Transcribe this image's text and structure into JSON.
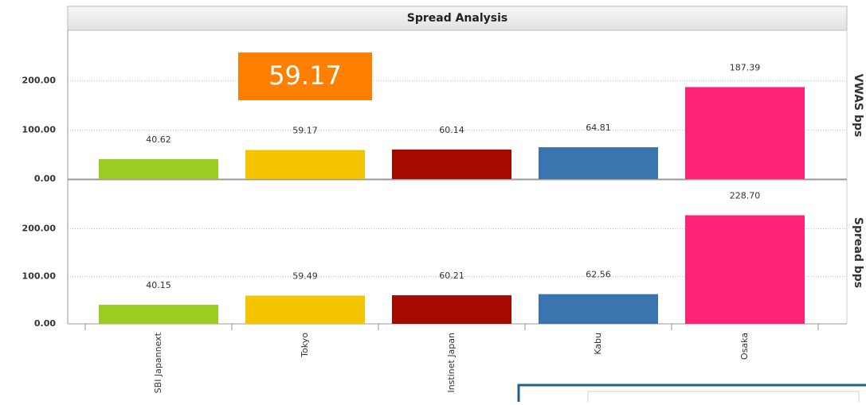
{
  "title": "Spread Analysis",
  "chart_data": [
    {
      "type": "bar",
      "axis_title": "VWAS bps",
      "values": [
        40.62,
        59.17,
        60.14,
        64.81,
        187.39
      ],
      "value_labels": [
        "40.62",
        "59.17",
        "60.14",
        "64.81",
        "187.39"
      ],
      "colors": [
        "#9acd22",
        "#f5c400",
        "#a50a00",
        "#3a75b0",
        "#ff2277"
      ],
      "ylim": [
        0,
        300
      ],
      "yticks": [
        {
          "value": 0,
          "label": "0.00"
        },
        {
          "value": 100,
          "label": "100.00"
        },
        {
          "value": 200,
          "label": "200.00"
        }
      ],
      "grid": true
    },
    {
      "type": "bar",
      "axis_title": "Spread bps",
      "categories": [
        "SBI Japannext",
        "Tokyo",
        "Instinet Japan",
        "Kabu",
        "Osaka"
      ],
      "values": [
        40.15,
        59.49,
        60.21,
        62.56,
        228.7
      ],
      "value_labels": [
        "40.15",
        "59.49",
        "60.21",
        "62.56",
        "228.70"
      ],
      "colors": [
        "#9acd22",
        "#f5c400",
        "#a50a00",
        "#3a75b0",
        "#ff2277"
      ],
      "ylim": [
        0,
        300
      ],
      "yticks": [
        {
          "value": 0,
          "label": "0.00"
        },
        {
          "value": 100,
          "label": "100.00"
        },
        {
          "value": 200,
          "label": "200.00"
        }
      ],
      "grid": true
    }
  ]
}
